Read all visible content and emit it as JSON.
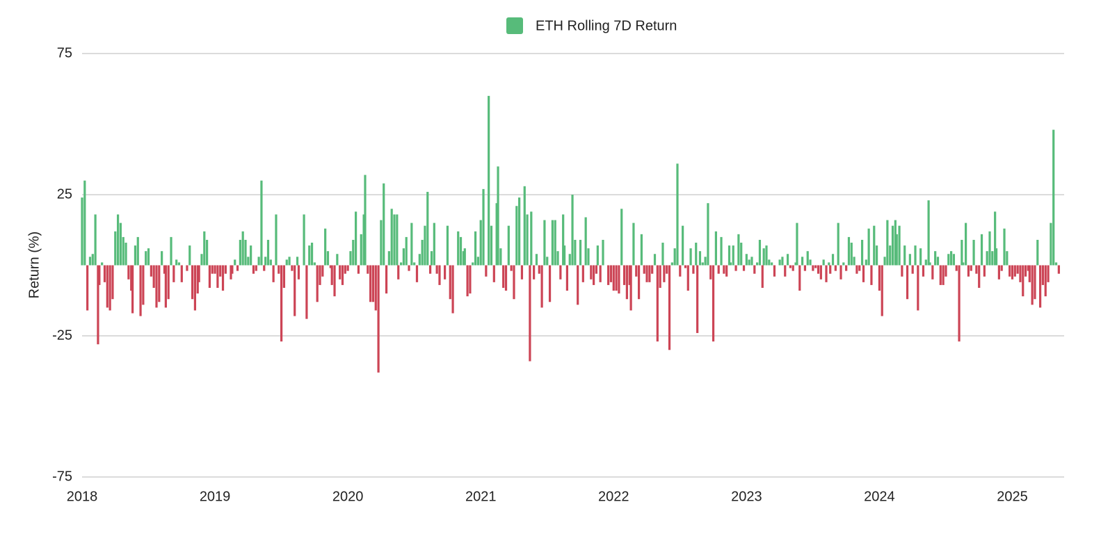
{
  "chart_data": {
    "type": "bar",
    "ylabel": "Return (%)",
    "ylim": [
      -75,
      75
    ],
    "yticks": [
      -75,
      -25,
      25,
      75
    ],
    "xlim": [
      2018,
      2025.39
    ],
    "xticks": [
      2018,
      2019,
      2020,
      2021,
      2022,
      2023,
      2024,
      2025
    ],
    "grid": true,
    "legend": "top",
    "x": [
      2018,
      2018.02,
      2018.04,
      2018.06,
      2018.08,
      2018.1,
      2018.12,
      2018.13,
      2018.15,
      2018.17,
      2018.19,
      2018.21,
      2018.23,
      2018.25,
      2018.27,
      2018.29,
      2018.31,
      2018.33,
      2018.35,
      2018.37,
      2018.38,
      2018.4,
      2018.42,
      2018.44,
      2018.46,
      2018.48,
      2018.5,
      2018.52,
      2018.54,
      2018.56,
      2018.58,
      2018.6,
      2018.62,
      2018.63,
      2018.65,
      2018.67,
      2018.69,
      2018.71,
      2018.73,
      2018.75,
      2018.77,
      2018.79,
      2018.81,
      2018.83,
      2018.85,
      2018.87,
      2018.88,
      2018.9,
      2018.92,
      2018.94,
      2018.96,
      2018.98,
      2019,
      2019.02,
      2019.04,
      2019.06,
      2019.08,
      2019.1,
      2019.12,
      2019.13,
      2019.15,
      2019.17,
      2019.19,
      2019.21,
      2019.23,
      2019.25,
      2019.27,
      2019.29,
      2019.31,
      2019.33,
      2019.35,
      2019.37,
      2019.38,
      2019.4,
      2019.42,
      2019.44,
      2019.46,
      2019.48,
      2019.5,
      2019.52,
      2019.54,
      2019.56,
      2019.58,
      2019.6,
      2019.62,
      2019.63,
      2019.65,
      2019.67,
      2019.69,
      2019.71,
      2019.73,
      2019.75,
      2019.77,
      2019.79,
      2019.81,
      2019.83,
      2019.85,
      2019.87,
      2019.88,
      2019.9,
      2019.92,
      2019.94,
      2019.96,
      2019.98,
      2020,
      2020.02,
      2020.04,
      2020.06,
      2020.08,
      2020.1,
      2020.12,
      2020.13,
      2020.15,
      2020.17,
      2020.19,
      2020.21,
      2020.23,
      2020.25,
      2020.27,
      2020.29,
      2020.31,
      2020.33,
      2020.35,
      2020.37,
      2020.38,
      2020.4,
      2020.42,
      2020.44,
      2020.46,
      2020.48,
      2020.5,
      2020.52,
      2020.54,
      2020.56,
      2020.58,
      2020.6,
      2020.62,
      2020.63,
      2020.65,
      2020.67,
      2020.69,
      2020.71,
      2020.73,
      2020.75,
      2020.77,
      2020.79,
      2020.81,
      2020.83,
      2020.85,
      2020.87,
      2020.88,
      2020.9,
      2020.92,
      2020.94,
      2020.96,
      2020.98,
      2021,
      2021.02,
      2021.04,
      2021.06,
      2021.08,
      2021.1,
      2021.12,
      2021.13,
      2021.15,
      2021.17,
      2021.19,
      2021.21,
      2021.23,
      2021.25,
      2021.27,
      2021.29,
      2021.31,
      2021.33,
      2021.35,
      2021.37,
      2021.38,
      2021.4,
      2021.42,
      2021.44,
      2021.46,
      2021.48,
      2021.5,
      2021.52,
      2021.54,
      2021.56,
      2021.58,
      2021.6,
      2021.62,
      2021.63,
      2021.65,
      2021.67,
      2021.69,
      2021.71,
      2021.73,
      2021.75,
      2021.77,
      2021.79,
      2021.81,
      2021.83,
      2021.85,
      2021.87,
      2021.88,
      2021.9,
      2021.92,
      2021.94,
      2021.96,
      2021.98,
      2022,
      2022.02,
      2022.04,
      2022.06,
      2022.08,
      2022.1,
      2022.12,
      2022.13,
      2022.15,
      2022.17,
      2022.19,
      2022.21,
      2022.23,
      2022.25,
      2022.27,
      2022.29,
      2022.31,
      2022.33,
      2022.35,
      2022.37,
      2022.38,
      2022.4,
      2022.42,
      2022.44,
      2022.46,
      2022.48,
      2022.5,
      2022.52,
      2022.54,
      2022.56,
      2022.58,
      2022.6,
      2022.62,
      2022.63,
      2022.65,
      2022.67,
      2022.69,
      2022.71,
      2022.73,
      2022.75,
      2022.77,
      2022.79,
      2022.81,
      2022.83,
      2022.85,
      2022.87,
      2022.88,
      2022.9,
      2022.92,
      2022.94,
      2022.96,
      2022.98,
      2023,
      2023.02,
      2023.04,
      2023.06,
      2023.08,
      2023.1,
      2023.12,
      2023.13,
      2023.15,
      2023.17,
      2023.19,
      2023.21,
      2023.23,
      2023.25,
      2023.27,
      2023.29,
      2023.31,
      2023.33,
      2023.35,
      2023.37,
      2023.38,
      2023.4,
      2023.42,
      2023.44,
      2023.46,
      2023.48,
      2023.5,
      2023.52,
      2023.54,
      2023.56,
      2023.58,
      2023.6,
      2023.62,
      2023.63,
      2023.65,
      2023.67,
      2023.69,
      2023.71,
      2023.73,
      2023.75,
      2023.77,
      2023.79,
      2023.81,
      2023.83,
      2023.85,
      2023.87,
      2023.88,
      2023.9,
      2023.92,
      2023.94,
      2023.96,
      2023.98,
      2024,
      2024.02,
      2024.04,
      2024.06,
      2024.08,
      2024.1,
      2024.12,
      2024.13,
      2024.15,
      2024.17,
      2024.19,
      2024.21,
      2024.23,
      2024.25,
      2024.27,
      2024.29,
      2024.31,
      2024.33,
      2024.35,
      2024.37,
      2024.38,
      2024.4,
      2024.42,
      2024.44,
      2024.46,
      2024.48,
      2024.5,
      2024.52,
      2024.54,
      2024.56,
      2024.58,
      2024.6,
      2024.62,
      2024.63,
      2024.65,
      2024.67,
      2024.69,
      2024.71,
      2024.73,
      2024.75,
      2024.77,
      2024.79,
      2024.81,
      2024.83,
      2024.85,
      2024.87,
      2024.88,
      2024.9,
      2024.92,
      2024.94,
      2024.96,
      2024.98,
      2025,
      2025.02,
      2025.04,
      2025.06,
      2025.08,
      2025.1,
      2025.12,
      2025.13,
      2025.15,
      2025.17,
      2025.19,
      2025.21,
      2025.23,
      2025.25,
      2025.27,
      2025.29,
      2025.31,
      2025.33,
      2025.35
    ],
    "series": [
      {
        "name": "ETH Rolling 7D Return",
        "color": "#57bb7a",
        "negative_color": "#cc4455",
        "values": [
          24,
          30,
          -16,
          3,
          4,
          18,
          -28,
          -7,
          1,
          -6,
          -15,
          -16,
          -12,
          12,
          18,
          15,
          10,
          8,
          -5,
          -9,
          -17,
          7,
          10,
          -18,
          -14,
          5,
          6,
          -4,
          -8,
          -15,
          -13,
          5,
          -3,
          -15,
          -12,
          10,
          -6,
          2,
          1,
          -6,
          0,
          -2,
          7,
          -12,
          -16,
          -10,
          -6,
          4,
          12,
          9,
          -8,
          -3,
          -3,
          -8,
          -4,
          -9,
          -3,
          0,
          -5,
          -3,
          2,
          -2,
          9,
          12,
          9,
          3,
          7,
          -3,
          -2,
          3,
          30,
          -2,
          3,
          9,
          2,
          -6,
          18,
          -3,
          -27,
          -8,
          2,
          3,
          -2,
          -18,
          3,
          -5,
          0,
          18,
          -19,
          7,
          8,
          1,
          -13,
          -7,
          -4,
          13,
          5,
          -1,
          -7,
          -11,
          4,
          -5,
          -7,
          -3,
          -2,
          5,
          9,
          19,
          -3,
          11,
          18,
          32,
          -3,
          -13,
          -13,
          -16,
          -38,
          16,
          29,
          -10,
          5,
          20,
          18,
          18,
          -5,
          1,
          6,
          10,
          -2,
          15,
          1,
          -6,
          4,
          9,
          14,
          26,
          -3,
          5,
          15,
          -3,
          -7,
          0,
          -5,
          14,
          -12,
          -17,
          0,
          12,
          10,
          5,
          6,
          -11,
          -10,
          1,
          12,
          3,
          16,
          27,
          -4,
          60,
          14,
          -6,
          22,
          35,
          6,
          -8,
          -9,
          14,
          -2,
          -12,
          21,
          24,
          -5,
          28,
          18,
          -34,
          19,
          -5,
          4,
          -3,
          -15,
          16,
          3,
          -13,
          16,
          16,
          5,
          -5,
          18,
          7,
          -9,
          4,
          25,
          9,
          -14,
          9,
          -6,
          17,
          6,
          -5,
          -7,
          -3,
          7,
          -6,
          9,
          0,
          -7,
          -6,
          -9,
          -9,
          -10,
          20,
          -7,
          -12,
          -7,
          -16,
          15,
          -4,
          -12,
          11,
          -3,
          -6,
          -6,
          -3,
          4,
          -27,
          -8,
          8,
          -6,
          -3,
          -30,
          1,
          6,
          36,
          -4,
          14,
          -1,
          -9,
          6,
          -3,
          8,
          -24,
          5,
          1,
          3,
          22,
          -5,
          -27,
          12,
          -3,
          10,
          -3,
          -4,
          7,
          1,
          7,
          -2,
          11,
          8,
          -2,
          4,
          2,
          3,
          -3,
          1,
          9,
          -8,
          6,
          7,
          2,
          1,
          -4,
          0,
          2,
          3,
          -4,
          4,
          -1,
          -2,
          1,
          15,
          -9,
          3,
          -2,
          5,
          2,
          -2,
          -1,
          -3,
          -5,
          2,
          -6,
          1,
          -3,
          4,
          -2,
          15,
          -5,
          1,
          -2,
          10,
          8,
          3,
          -3,
          -2,
          9,
          -6,
          2,
          13,
          -7,
          14,
          7,
          -9,
          -18,
          3,
          16,
          7,
          14,
          16,
          11,
          14,
          -4,
          7,
          -12,
          4,
          -3,
          7,
          -16,
          6,
          -4,
          2,
          23,
          1,
          -5,
          5,
          3,
          -7,
          -7,
          -4,
          4,
          5,
          4,
          -2,
          -27,
          9,
          1,
          15,
          -4,
          -2,
          9,
          -3,
          -8,
          11,
          -4,
          5,
          12,
          5,
          19,
          6,
          -5,
          -2,
          13,
          5,
          -4,
          -5,
          -4,
          -3,
          -6,
          -11,
          -4,
          -2,
          -6,
          -14,
          -12,
          9,
          -15,
          -7,
          -11,
          -6,
          15,
          48,
          1,
          -3
        ]
      }
    ]
  }
}
